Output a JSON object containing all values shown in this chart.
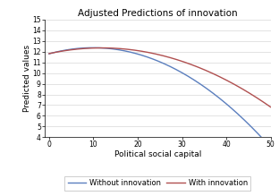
{
  "title": "Adjusted Predictions of innovation",
  "xlabel": "Political social capital",
  "ylabel": "Predicted values",
  "xlim": [
    -1,
    50
  ],
  "ylim": [
    4,
    15
  ],
  "xticks": [
    0,
    10,
    20,
    30,
    40,
    50
  ],
  "yticks": [
    4,
    5,
    6,
    7,
    8,
    9,
    10,
    11,
    12,
    13,
    14,
    15
  ],
  "curve_without": {
    "label": "Without innovation",
    "color": "#5b7fbe",
    "a": 11.8,
    "b": 0.115,
    "c": -0.0058
  },
  "curve_with": {
    "label": "With innovation",
    "color": "#b05050",
    "a": 11.82,
    "b": 0.09,
    "c": -0.0038
  },
  "background_color": "#ffffff",
  "grid_color": "#d8d8d8",
  "title_fontsize": 7.5,
  "axis_label_fontsize": 6.5,
  "tick_fontsize": 5.5,
  "legend_fontsize": 6,
  "linewidth": 1.0
}
